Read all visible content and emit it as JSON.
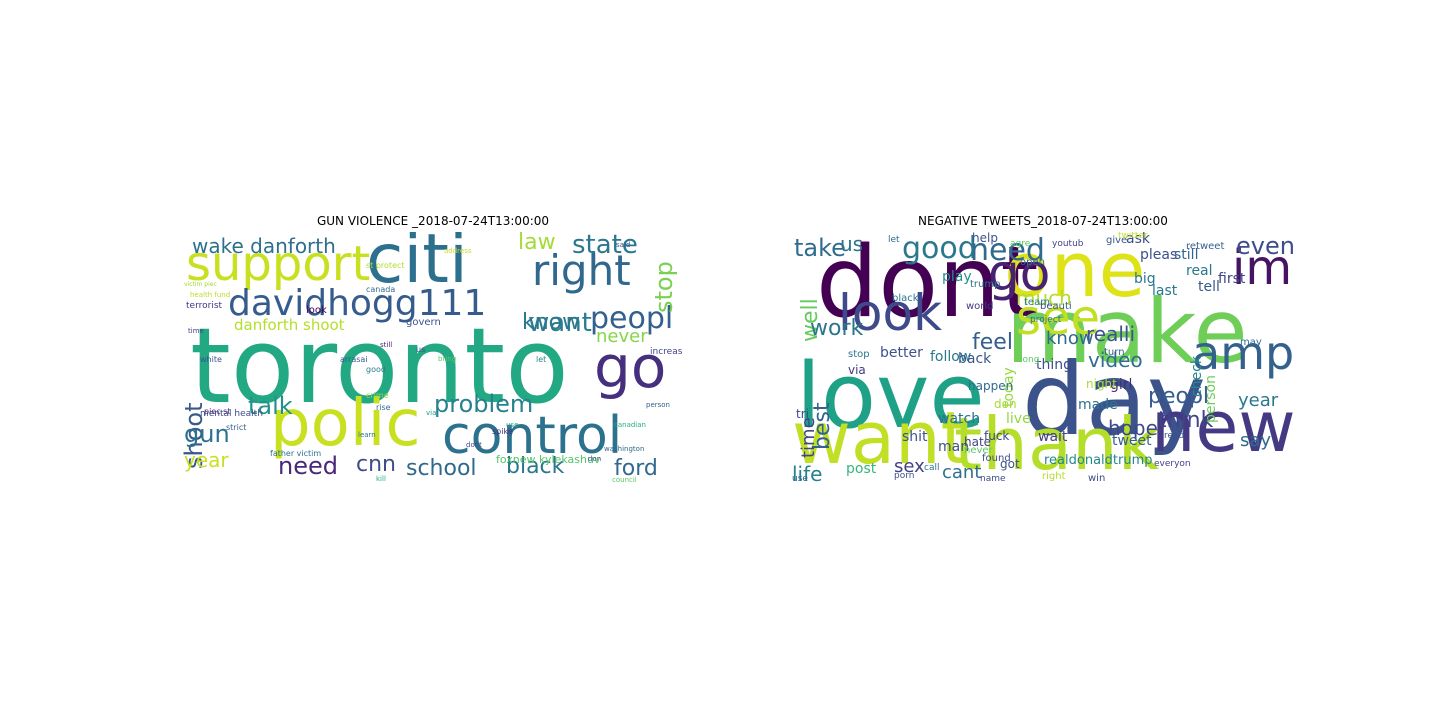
{
  "figure": {
    "left_panel": {
      "title": "GUN VIOLENCE _2018-07-24T13:00:00",
      "words": [
        {
          "text": "toronto",
          "color": "#23a884"
        },
        {
          "text": "polic",
          "color": "#c9e020"
        },
        {
          "text": "control",
          "color": "#2c718e"
        },
        {
          "text": "citi",
          "color": "#2d708e"
        },
        {
          "text": "go",
          "color": "#46307e"
        },
        {
          "text": "support",
          "color": "#c9e020"
        },
        {
          "text": "right",
          "color": "#31688e"
        },
        {
          "text": "davidhogg111",
          "color": "#365c8d"
        },
        {
          "text": "want",
          "color": "#287d8e"
        },
        {
          "text": "peopl",
          "color": "#34608d"
        },
        {
          "text": "stop",
          "color": "#7ad151"
        },
        {
          "text": "state",
          "color": "#2a788e"
        },
        {
          "text": "law",
          "color": "#a5db36"
        },
        {
          "text": "know",
          "color": "#2a788e"
        },
        {
          "text": "wake danforth",
          "color": "#2d708e"
        },
        {
          "text": "danforth shoot",
          "color": "#b5de2b"
        },
        {
          "text": "never",
          "color": "#86d549"
        },
        {
          "text": "problem",
          "color": "#26828e"
        },
        {
          "text": "shoot",
          "color": "#375a8c"
        },
        {
          "text": "talk",
          "color": "#21918c"
        },
        {
          "text": "gun",
          "color": "#2c718e"
        },
        {
          "text": "year",
          "color": "#c9e020"
        },
        {
          "text": "need",
          "color": "#482878"
        },
        {
          "text": "cnn",
          "color": "#3e4c8a"
        },
        {
          "text": "school",
          "color": "#31688e"
        },
        {
          "text": "black",
          "color": "#2a768e"
        },
        {
          "text": "ford",
          "color": "#31688e"
        },
        {
          "text": "foxnew kylekashuv",
          "color": "#52c569"
        },
        {
          "text": "terrorist",
          "color": "#46337e"
        },
        {
          "text": "mental health",
          "color": "#3f4889"
        },
        {
          "text": "father victim",
          "color": "#2c728e"
        },
        {
          "text": "health fund",
          "color": "#b8de29"
        },
        {
          "text": "victim piec",
          "color": "#a2da37"
        },
        {
          "text": "increas",
          "color": "#404588"
        },
        {
          "text": "govern",
          "color": "#3b528b"
        },
        {
          "text": "st protect",
          "color": "#b0dd2f"
        },
        {
          "text": "canada",
          "color": "#2f6c8e"
        },
        {
          "text": "look",
          "color": "#440154"
        },
        {
          "text": "white",
          "color": "#3a538b"
        },
        {
          "text": "good",
          "color": "#277f8e"
        },
        {
          "text": "strict",
          "color": "#355f8d"
        },
        {
          "text": "spike",
          "color": "#472d7b"
        },
        {
          "text": "crime",
          "color": "#8fd744"
        },
        {
          "text": "rise",
          "color": "#2e6f8e"
        },
        {
          "text": "learn",
          "color": "#2b748e"
        },
        {
          "text": "kill",
          "color": "#26ad81"
        },
        {
          "text": "dont",
          "color": "#3e4a89"
        },
        {
          "text": "let",
          "color": "#24878e"
        },
        {
          "text": "time",
          "color": "#414487"
        },
        {
          "text": "said",
          "color": "#39568c"
        },
        {
          "text": "via",
          "color": "#1f9e89"
        },
        {
          "text": "don",
          "color": "#3b528b"
        },
        {
          "text": "use",
          "color": "#20a386"
        },
        {
          "text": "still",
          "color": "#482475"
        },
        {
          "text": "bring",
          "color": "#5ec962"
        },
        {
          "text": "arrasai",
          "color": "#375b8d"
        },
        {
          "text": "us",
          "color": "#3b528b"
        },
        {
          "text": "piec st",
          "color": "#472f7d"
        },
        {
          "text": "address",
          "color": "#c2df23"
        },
        {
          "text": "canadian",
          "color": "#26ad81"
        },
        {
          "text": "council",
          "color": "#5ac864"
        },
        {
          "text": "person",
          "color": "#33638d"
        },
        {
          "text": "washington",
          "color": "#31688e"
        }
      ]
    },
    "right_panel": {
      "title": "NEGATIVE TWEETS_2018-07-24T13:00:00",
      "words": [
        {
          "text": "love",
          "color": "#1fa187"
        },
        {
          "text": "dont",
          "color": "#440154"
        },
        {
          "text": "day",
          "color": "#3b528b"
        },
        {
          "text": "make",
          "color": "#6ece58"
        },
        {
          "text": "one",
          "color": "#dde318"
        },
        {
          "text": "want",
          "color": "#c0df25"
        },
        {
          "text": "thank",
          "color": "#b5de2b"
        },
        {
          "text": "new",
          "color": "#443a83"
        },
        {
          "text": "look",
          "color": "#3e4a89"
        },
        {
          "text": "go",
          "color": "#482173"
        },
        {
          "text": "see",
          "color": "#c2df23"
        },
        {
          "text": "im",
          "color": "#471365"
        },
        {
          "text": "amp",
          "color": "#34608d"
        },
        {
          "text": "good",
          "color": "#2a788e"
        },
        {
          "text": "need",
          "color": "#306a8e"
        },
        {
          "text": "even",
          "color": "#3e4c8a"
        },
        {
          "text": "take",
          "color": "#2f6c8e"
        },
        {
          "text": "us",
          "color": "#2c738e"
        },
        {
          "text": "well",
          "color": "#65cb5e"
        },
        {
          "text": "work",
          "color": "#2a768e"
        },
        {
          "text": "best",
          "color": "#34618d"
        },
        {
          "text": "time",
          "color": "#3f4788"
        },
        {
          "text": "feel",
          "color": "#35608d"
        },
        {
          "text": "much",
          "color": "#b0dd2f"
        },
        {
          "text": "realli",
          "color": "#3b528b"
        },
        {
          "text": "know",
          "color": "#31688e"
        },
        {
          "text": "video",
          "color": "#2e6e8e"
        },
        {
          "text": "peopl",
          "color": "#365d8d"
        },
        {
          "text": "year",
          "color": "#2a788e"
        },
        {
          "text": "think",
          "color": "#414287"
        },
        {
          "text": "hope",
          "color": "#3e4989"
        },
        {
          "text": "say",
          "color": "#2f6b8e"
        },
        {
          "text": "life",
          "color": "#25838e"
        },
        {
          "text": "sex",
          "color": "#424086"
        },
        {
          "text": "cant",
          "color": "#2e6f8e"
        },
        {
          "text": "post",
          "color": "#35b779"
        },
        {
          "text": "better",
          "color": "#3b528b"
        },
        {
          "text": "follow",
          "color": "#2a788e"
        },
        {
          "text": "thing",
          "color": "#3d4d8a"
        },
        {
          "text": "girl",
          "color": "#472c7a"
        },
        {
          "text": "night",
          "color": "#a8db34"
        },
        {
          "text": "check",
          "color": "#23898e"
        },
        {
          "text": "person",
          "color": "#6ccd5a"
        },
        {
          "text": "tweet",
          "color": "#365d8d"
        },
        {
          "text": "made",
          "color": "#2c728e"
        },
        {
          "text": "watch",
          "color": "#2d708e"
        },
        {
          "text": "shit",
          "color": "#3a538b"
        },
        {
          "text": "live",
          "color": "#8fd744"
        },
        {
          "text": "wait",
          "color": "#433e85"
        },
        {
          "text": "today",
          "color": "#95d840"
        },
        {
          "text": "realdonaldtrump",
          "color": "#24868e"
        },
        {
          "text": "man",
          "color": "#3b528b"
        },
        {
          "text": "right",
          "color": "#b5de2b"
        },
        {
          "text": "win",
          "color": "#3e4a89"
        },
        {
          "text": "ask",
          "color": "#3c4f8a"
        },
        {
          "text": "still",
          "color": "#32648e"
        },
        {
          "text": "real",
          "color": "#2a788e"
        },
        {
          "text": "pleas",
          "color": "#3b528b"
        },
        {
          "text": "big",
          "color": "#29798e"
        },
        {
          "text": "tell",
          "color": "#375a8c"
        },
        {
          "text": "first",
          "color": "#404588"
        },
        {
          "text": "last",
          "color": "#2a788e"
        },
        {
          "text": "help",
          "color": "#3b528b"
        },
        {
          "text": "play",
          "color": "#21918c"
        },
        {
          "text": "fuck",
          "color": "#404688"
        },
        {
          "text": "back",
          "color": "#39568c"
        },
        {
          "text": "happen",
          "color": "#2f6c8e"
        },
        {
          "text": "hate",
          "color": "#414487"
        },
        {
          "text": "via",
          "color": "#443983"
        },
        {
          "text": "tri",
          "color": "#3e4a89"
        },
        {
          "text": "don",
          "color": "#a8db34"
        },
        {
          "text": "got",
          "color": "#3b528b"
        },
        {
          "text": "never",
          "color": "#5ec962"
        },
        {
          "text": "found",
          "color": "#3e4c8a"
        },
        {
          "text": "stop",
          "color": "#2b758e"
        },
        {
          "text": "open",
          "color": "#2c728e"
        },
        {
          "text": "turn",
          "color": "#365c8d"
        },
        {
          "text": "give",
          "color": "#39568c"
        },
        {
          "text": "world",
          "color": "#443a83"
        },
        {
          "text": "team",
          "color": "#2a788e"
        },
        {
          "text": "beauti",
          "color": "#3b528b"
        },
        {
          "text": "black",
          "color": "#2a768e"
        },
        {
          "text": "trump",
          "color": "#2d708e"
        },
        {
          "text": "retweet",
          "color": "#35608d"
        },
        {
          "text": "twitter",
          "color": "#c2df23"
        },
        {
          "text": "youtub",
          "color": "#3f4889"
        },
        {
          "text": "project",
          "color": "#2e6f8e"
        },
        {
          "text": "let",
          "color": "#306a8e"
        },
        {
          "text": "agre",
          "color": "#5ac864"
        },
        {
          "text": "read",
          "color": "#3a538b"
        },
        {
          "text": "call",
          "color": "#2c718e"
        },
        {
          "text": "porn",
          "color": "#3b528b"
        },
        {
          "text": "everyon",
          "color": "#414287"
        },
        {
          "text": "name",
          "color": "#3e4c8a"
        },
        {
          "text": "use",
          "color": "#33638d"
        },
        {
          "text": "long",
          "color": "#5ec962"
        },
        {
          "text": "may",
          "color": "#306a8e"
        },
        {
          "text": "two",
          "color": "#3b528b"
        },
        {
          "text": "ye",
          "color": "#2c728e"
        }
      ]
    }
  }
}
